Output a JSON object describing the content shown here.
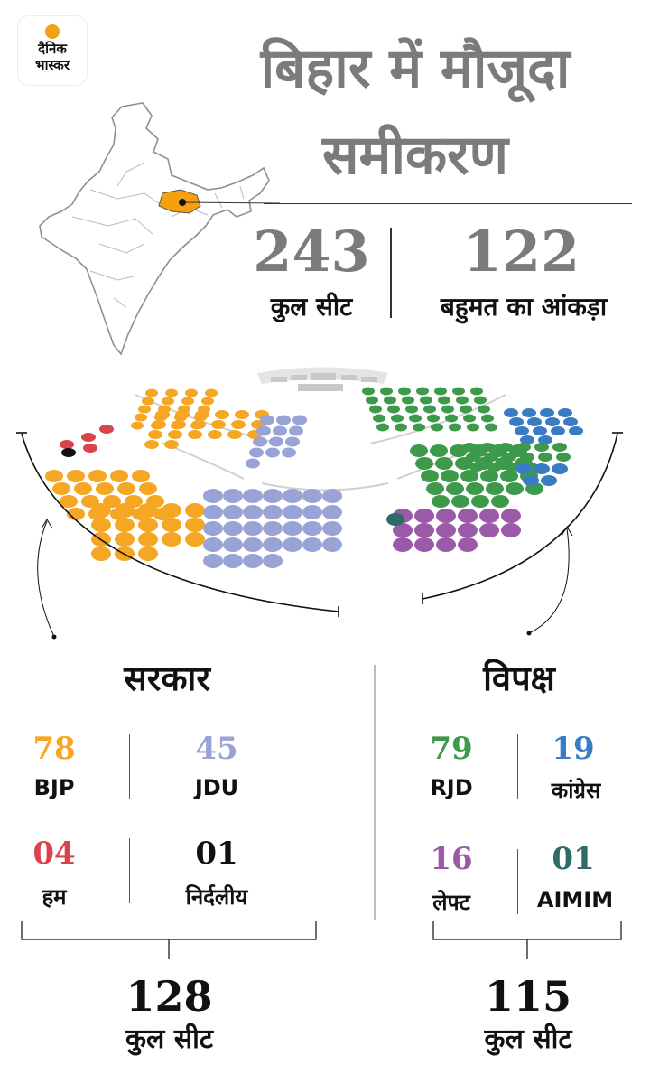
{
  "logo": {
    "line1": "दैनिक",
    "line2": "भास्कर"
  },
  "title": {
    "line1": "बिहार में मौजूदा",
    "line2": "समीकरण"
  },
  "stats": [
    {
      "value": "243",
      "label": "कुल सीट"
    },
    {
      "value": "122",
      "label": "बहुमत का आंकड़ा"
    }
  ],
  "government": {
    "heading": "सरकार",
    "parties": [
      {
        "value": "78",
        "label": "BJP",
        "color": "#f5a623"
      },
      {
        "value": "45",
        "label": "JDU",
        "color": "#9aa3d6"
      },
      {
        "value": "04",
        "label": "हम",
        "color": "#d9434b"
      },
      {
        "value": "01",
        "label": "निर्दलीय",
        "color": "#111111"
      }
    ],
    "total": "128",
    "total_label": "कुल सीट"
  },
  "opposition": {
    "heading": "विपक्ष",
    "parties": [
      {
        "value": "79",
        "label": "RJD",
        "color": "#3c9a4a"
      },
      {
        "value": "19",
        "label": "कांग्रेस",
        "color": "#3a7cc4"
      },
      {
        "value": "16",
        "label": "लेफ्ट",
        "color": "#9b5aa8"
      },
      {
        "value": "01",
        "label": "AIMIM",
        "color": "#2e6a66"
      }
    ],
    "total": "115",
    "total_label": "कुल सीट"
  },
  "colors": {
    "map_bihar": "#f5a00f",
    "title_gray": "#7a7b7d",
    "speaker_gray": "#c8c8c8"
  }
}
